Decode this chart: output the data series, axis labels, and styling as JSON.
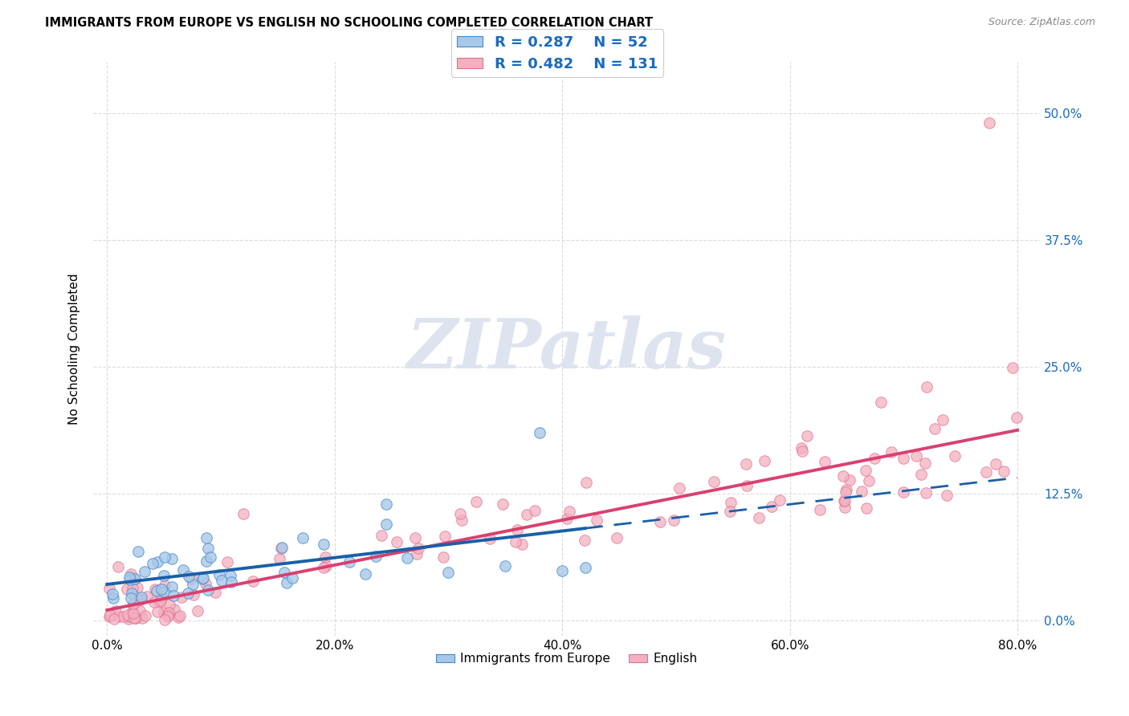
{
  "title": "IMMIGRANTS FROM EUROPE VS ENGLISH NO SCHOOLING COMPLETED CORRELATION CHART",
  "source": "Source: ZipAtlas.com",
  "ylabel": "No Schooling Completed",
  "xlim": [
    -0.012,
    0.82
  ],
  "ylim": [
    -0.015,
    0.55
  ],
  "xticks": [
    0.0,
    0.2,
    0.4,
    0.6,
    0.8
  ],
  "xticklabels": [
    "0.0%",
    "20.0%",
    "40.0%",
    "60.0%",
    "80.0%"
  ],
  "yticks": [
    0.0,
    0.125,
    0.25,
    0.375,
    0.5
  ],
  "yticklabels": [
    "0.0%",
    "12.5%",
    "25.0%",
    "37.5%",
    "50.0%"
  ],
  "legend_blue_r": "0.287",
  "legend_blue_n": "52",
  "legend_pink_r": "0.482",
  "legend_pink_n": "131",
  "legend_label_blue": "Immigrants from Europe",
  "legend_label_pink": "English",
  "blue_face_color": "#a8c8e8",
  "blue_edge_color": "#4488cc",
  "pink_face_color": "#f4b0c0",
  "pink_edge_color": "#e07090",
  "blue_line_color": "#1a5fa8",
  "pink_line_color": "#d94070",
  "watermark_text": "ZIPatlas",
  "watermark_color": "#dde4ef",
  "grid_color": "#cccccc",
  "title_fontsize": 10.5,
  "source_fontsize": 9,
  "tick_fontsize": 11,
  "ylabel_fontsize": 11,
  "legend_fontsize": 13
}
